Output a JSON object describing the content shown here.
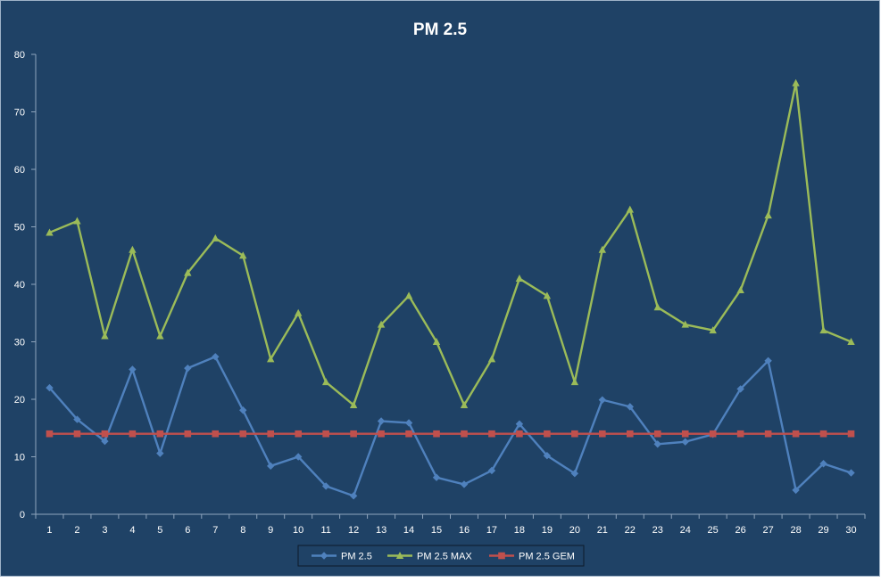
{
  "chart_data": {
    "type": "line",
    "title": "PM 2.5",
    "xlabel": "",
    "ylabel": "",
    "ylim": [
      0,
      80
    ],
    "yticks": [
      0,
      10,
      20,
      30,
      40,
      50,
      60,
      70,
      80
    ],
    "categories": [
      "1",
      "2",
      "3",
      "4",
      "5",
      "6",
      "7",
      "8",
      "9",
      "10",
      "11",
      "12",
      "13",
      "14",
      "15",
      "16",
      "17",
      "18",
      "19",
      "20",
      "21",
      "22",
      "23",
      "24",
      "25",
      "26",
      "27",
      "28",
      "29",
      "30"
    ],
    "grid": false,
    "legend_position": "bottom",
    "background": "#1f4266",
    "text_color": "#ffffff",
    "series": [
      {
        "name": "PM 2.5",
        "color": "#4f81bd",
        "marker": "diamond",
        "values": [
          22,
          16.5,
          12.7,
          25.2,
          10.6,
          25.4,
          27.4,
          18.1,
          8.4,
          10,
          4.9,
          3.2,
          16.2,
          15.9,
          6.4,
          5.2,
          7.6,
          15.7,
          10.2,
          7.1,
          19.9,
          18.7,
          12.2,
          12.6,
          13.9,
          21.8,
          26.7,
          4.2,
          8.8,
          7.2
        ]
      },
      {
        "name": "PM 2.5 MAX",
        "color": "#9bbb59",
        "marker": "triangle",
        "values": [
          49,
          51,
          31,
          46,
          31,
          42,
          48,
          45,
          27,
          35,
          23,
          19,
          33,
          38,
          30,
          19,
          27,
          41,
          38,
          23,
          46,
          53,
          36,
          33,
          32,
          39,
          52,
          75,
          32,
          30
        ]
      },
      {
        "name": "PM 2.5 GEM",
        "color": "#c0504d",
        "marker": "square",
        "values": [
          14,
          14,
          14,
          14,
          14,
          14,
          14,
          14,
          14,
          14,
          14,
          14,
          14,
          14,
          14,
          14,
          14,
          14,
          14,
          14,
          14,
          14,
          14,
          14,
          14,
          14,
          14,
          14,
          14,
          14
        ]
      }
    ]
  }
}
